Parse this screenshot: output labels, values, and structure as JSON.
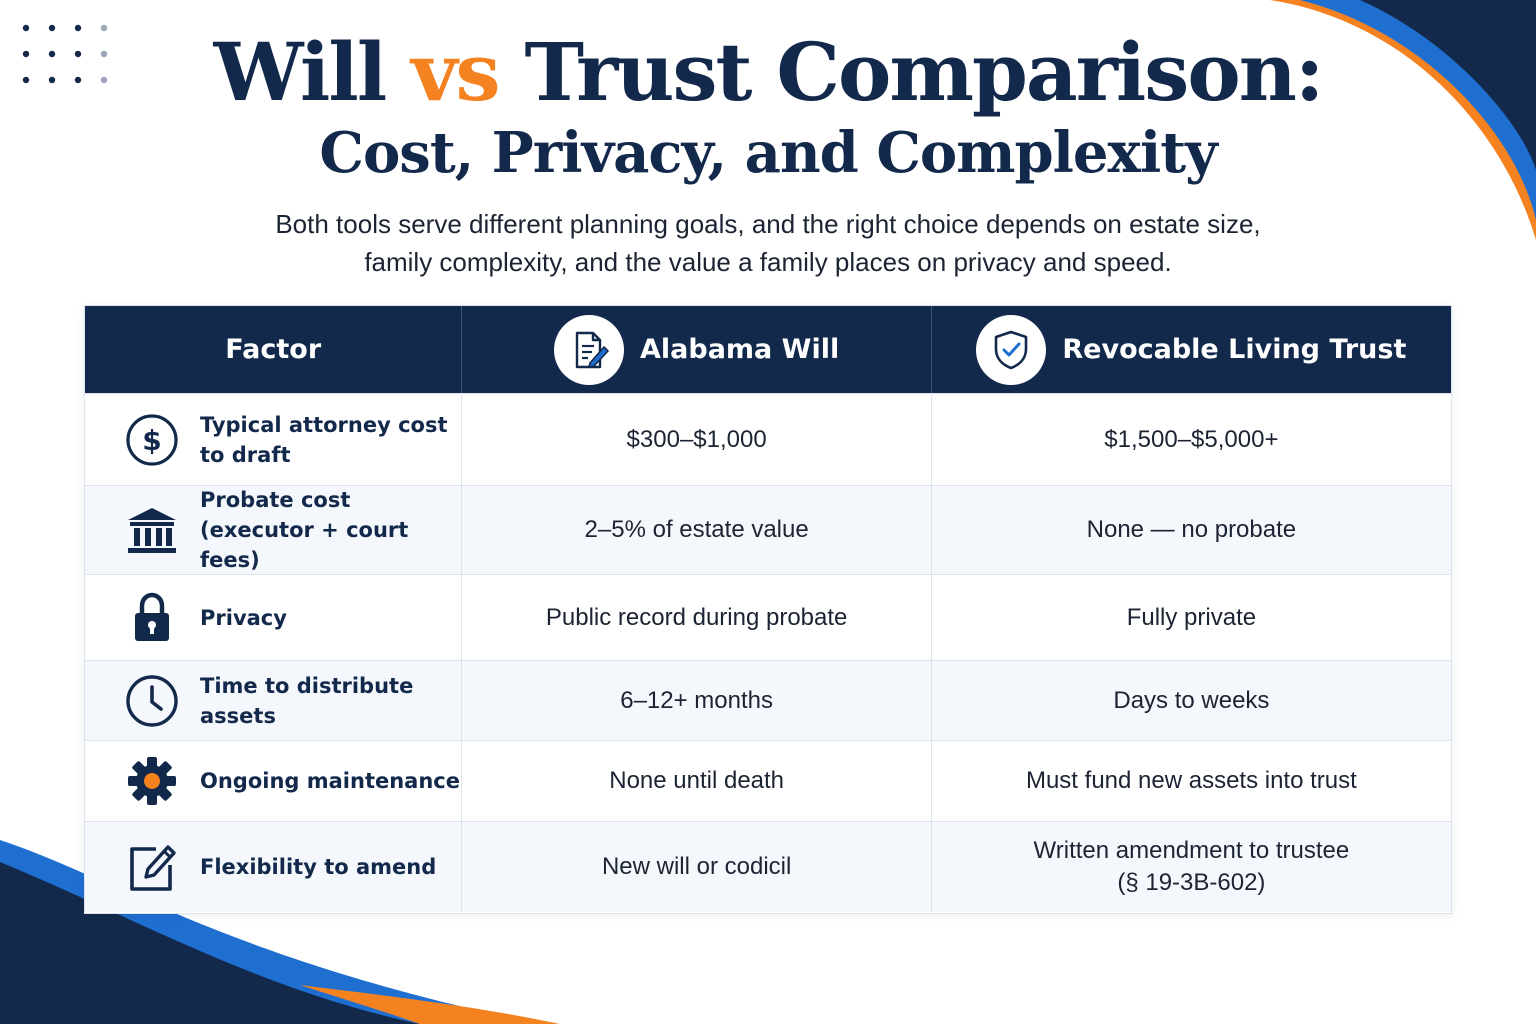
{
  "title": {
    "part1": "Will ",
    "vs": "vs",
    "part2": " Trust Comparison:",
    "subtitle": "Cost, Privacy, and Complexity"
  },
  "intro": {
    "line1": "Both tools serve different planning goals, and the right choice depends on estate size,",
    "line2": "family complexity, and the value a family places on privacy and speed."
  },
  "table": {
    "headers": {
      "factor": "Factor",
      "will": "Alabama Will",
      "trust": "Revocable Living Trust"
    },
    "header_icons": {
      "will": "document-pen-icon",
      "trust": "shield-check-icon"
    },
    "rows": [
      {
        "icon": "dollar-circle-icon",
        "factor": "Typical attorney cost to draft",
        "will": "$300–$1,000",
        "trust": "$1,500–$5,000+"
      },
      {
        "icon": "courthouse-icon",
        "factor": "Probate cost (executor + court fees)",
        "will": "2–5% of estate value",
        "trust": "None — no probate"
      },
      {
        "icon": "padlock-icon",
        "factor": "Privacy",
        "will": "Public record during probate",
        "trust": "Fully private"
      },
      {
        "icon": "clock-icon",
        "factor": "Time to distribute assets",
        "will": "6–12+ months",
        "trust": "Days to weeks"
      },
      {
        "icon": "gear-icon",
        "factor": "Ongoing maintenance",
        "will": "None until death",
        "trust": "Must fund new assets into trust"
      },
      {
        "icon": "edit-pencil-icon",
        "factor": "Flexibility to amend",
        "will": "New will or codicil",
        "trust_line1": "Written amendment to trustee",
        "trust_line2": "(§ 19-3B-602)"
      }
    ]
  },
  "colors": {
    "navy": "#13294b",
    "orange": "#f58220",
    "blue": "#1f6fd1"
  }
}
